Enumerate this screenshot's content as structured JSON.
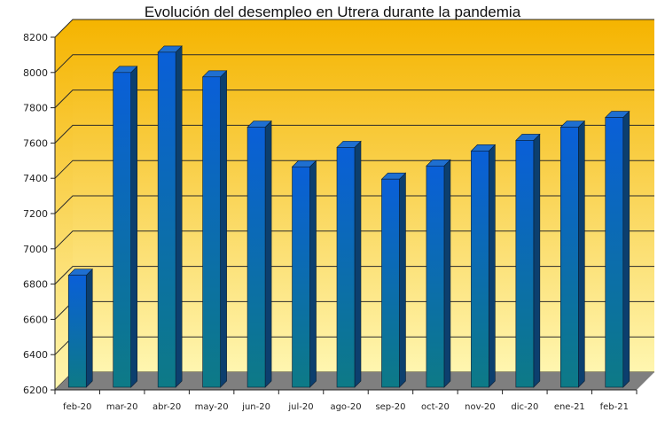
{
  "chart_data": {
    "type": "bar",
    "title": "Evolución del desempleo en Utrera durante la pandemia",
    "xlabel": "",
    "ylabel": "",
    "categories": [
      "feb-20",
      "mar-20",
      "abr-20",
      "may-20",
      "jun-20",
      "jul-20",
      "ago-20",
      "sep-20",
      "oct-20",
      "nov-20",
      "dic-20",
      "ene-21",
      "feb-21"
    ],
    "values": [
      6850,
      8000,
      8115,
      7975,
      7690,
      7465,
      7575,
      7395,
      7470,
      7555,
      7615,
      7690,
      7745
    ],
    "ylim": [
      6200,
      8200
    ],
    "yticks": [
      "6200",
      "6400",
      "6600",
      "6800",
      "7000",
      "7200",
      "7400",
      "7600",
      "7800",
      "8000",
      "8200"
    ],
    "grid": true,
    "legend": "none",
    "colors": {
      "bar_top": "#0a5fd8",
      "bar_bottom": "#0d7a86",
      "bar_side": "#0c3f6e",
      "bar_cap": "#1f6fd0",
      "wall_top": "#f5b400",
      "wall_bottom": "#fff6b0",
      "floor": "#7f7f7f"
    }
  }
}
